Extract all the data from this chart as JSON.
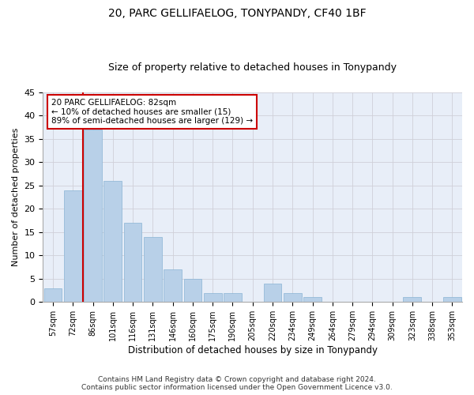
{
  "title1": "20, PARC GELLIFAELOG, TONYPANDY, CF40 1BF",
  "title2": "Size of property relative to detached houses in Tonypandy",
  "xlabel": "Distribution of detached houses by size in Tonypandy",
  "ylabel": "Number of detached properties",
  "categories": [
    "57sqm",
    "72sqm",
    "86sqm",
    "101sqm",
    "116sqm",
    "131sqm",
    "146sqm",
    "160sqm",
    "175sqm",
    "190sqm",
    "205sqm",
    "220sqm",
    "234sqm",
    "249sqm",
    "264sqm",
    "279sqm",
    "294sqm",
    "309sqm",
    "323sqm",
    "338sqm",
    "353sqm"
  ],
  "values": [
    3,
    24,
    37,
    26,
    17,
    14,
    7,
    5,
    2,
    2,
    0,
    4,
    2,
    1,
    0,
    0,
    0,
    0,
    1,
    0,
    1
  ],
  "bar_color": "#b8d0e8",
  "bar_edge_color": "#8ab4d4",
  "annotation_text": "20 PARC GELLIFAELOG: 82sqm\n← 10% of detached houses are smaller (15)\n89% of semi-detached houses are larger (129) →",
  "annotation_box_color": "#ffffff",
  "annotation_box_edge_color": "#cc0000",
  "vline_color": "#cc0000",
  "ylim": [
    0,
    45
  ],
  "yticks": [
    0,
    5,
    10,
    15,
    20,
    25,
    30,
    35,
    40,
    45
  ],
  "grid_color": "#d0d0d8",
  "background_color": "#e8eef8",
  "footer1": "Contains HM Land Registry data © Crown copyright and database right 2024.",
  "footer2": "Contains public sector information licensed under the Open Government Licence v3.0.",
  "title1_fontsize": 10,
  "title2_fontsize": 9,
  "xlabel_fontsize": 8.5,
  "ylabel_fontsize": 8,
  "tick_fontsize": 7,
  "annotation_fontsize": 7.5,
  "footer_fontsize": 6.5
}
